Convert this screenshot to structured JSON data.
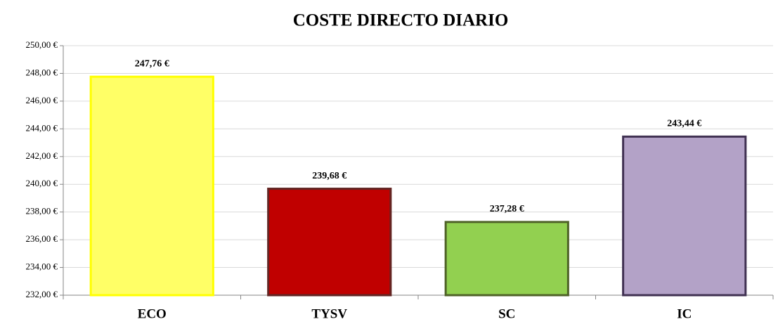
{
  "chart_data": {
    "type": "bar",
    "title": "COSTE DIRECTO DIARIO",
    "categories": [
      "ECO",
      "TYSV",
      "SC",
      "IC"
    ],
    "values": [
      247.76,
      239.68,
      237.28,
      243.44
    ],
    "value_labels": [
      "247,76 €",
      "239,68 €",
      "237,28 €",
      "243,44 €"
    ],
    "colors": [
      "#ffff66",
      "#c00000",
      "#92d050",
      "#b3a2c7"
    ],
    "edge_colors": [
      "#ffff00",
      "#632523",
      "#4f6228",
      "#403152"
    ],
    "ylim": [
      232,
      250
    ],
    "yticks": [
      {
        "value": 232,
        "label": "232,00 €"
      },
      {
        "value": 234,
        "label": "234,00 €"
      },
      {
        "value": 236,
        "label": "236,00 €"
      },
      {
        "value": 238,
        "label": "238,00 €"
      },
      {
        "value": 240,
        "label": "240,00 €"
      },
      {
        "value": 242,
        "label": "242,00 €"
      },
      {
        "value": 244,
        "label": "244,00 €"
      },
      {
        "value": 246,
        "label": "246,00 €"
      },
      {
        "value": 248,
        "label": "248,00 €"
      },
      {
        "value": 250,
        "label": "250,00 €"
      }
    ],
    "grid": true
  }
}
